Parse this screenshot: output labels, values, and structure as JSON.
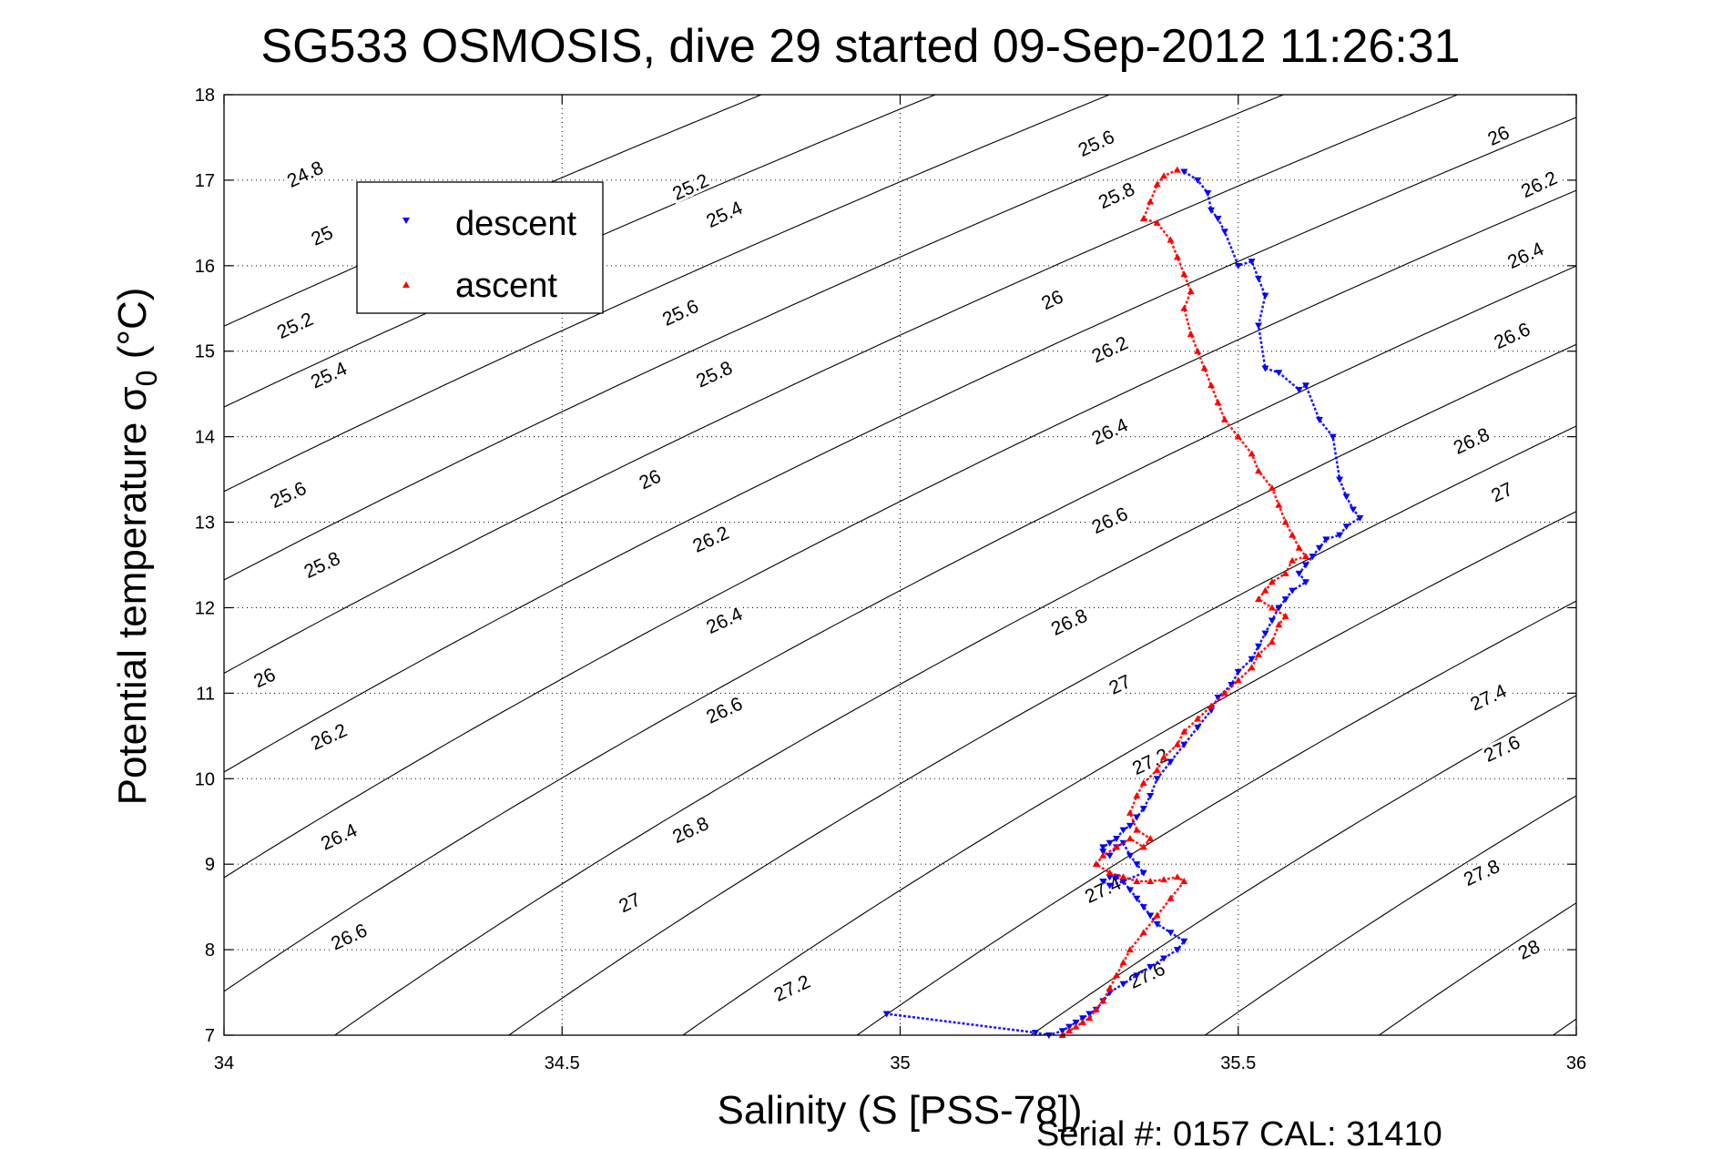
{
  "chart_data": {
    "type": "scatter",
    "title": "SG533 OSMOSIS, dive 29 started 09-Sep-2012 11:26:31",
    "xlabel": "Salinity (S [PSS-78])",
    "ylabel_main": "Potential temperature ",
    "ylabel_sigma": "σ",
    "ylabel_sub": "0",
    "ylabel_unit": " (°C)",
    "xlim": [
      34,
      36
    ],
    "ylim": [
      7,
      18
    ],
    "x_ticks": [
      "34",
      "34.5",
      "35",
      "35.5",
      "36"
    ],
    "y_ticks": [
      "7",
      "8",
      "9",
      "10",
      "11",
      "12",
      "13",
      "14",
      "15",
      "16",
      "17",
      "18"
    ],
    "grid": true,
    "legend_position": "top-left",
    "footer": "Serial #: 0157  CAL: 31410",
    "contour_levels": [
      24.8,
      25.0,
      25.2,
      25.4,
      25.6,
      25.8,
      26.0,
      26.2,
      26.4,
      26.6,
      26.8,
      27.0,
      27.2,
      27.4,
      27.6,
      27.8,
      28.0
    ],
    "contour_labels": [
      {
        "text": "24.8",
        "s": 34.12,
        "t": 17.07
      },
      {
        "text": "25",
        "s": 34.145,
        "t": 16.35
      },
      {
        "text": "25.2",
        "s": 34.105,
        "t": 15.3
      },
      {
        "text": "25.4",
        "s": 34.155,
        "t": 14.72
      },
      {
        "text": "25.6",
        "s": 34.095,
        "t": 13.32
      },
      {
        "text": "25.8",
        "s": 34.145,
        "t": 12.5
      },
      {
        "text": "26",
        "s": 34.06,
        "t": 11.18
      },
      {
        "text": "26.2",
        "s": 34.155,
        "t": 10.49
      },
      {
        "text": "26.4",
        "s": 34.17,
        "t": 9.32
      },
      {
        "text": "26.6",
        "s": 34.185,
        "t": 8.15
      },
      {
        "text": "25.2",
        "s": 34.69,
        "t": 16.92
      },
      {
        "text": "25.4",
        "s": 34.74,
        "t": 16.6
      },
      {
        "text": "25.6",
        "s": 34.675,
        "t": 15.45
      },
      {
        "text": "25.8",
        "s": 34.725,
        "t": 14.73
      },
      {
        "text": "26",
        "s": 34.63,
        "t": 13.5
      },
      {
        "text": "26.2",
        "s": 34.72,
        "t": 12.8
      },
      {
        "text": "26.4",
        "s": 34.74,
        "t": 11.85
      },
      {
        "text": "26.6",
        "s": 34.74,
        "t": 10.8
      },
      {
        "text": "26.8",
        "s": 34.69,
        "t": 9.4
      },
      {
        "text": "27",
        "s": 34.6,
        "t": 8.55
      },
      {
        "text": "27.2",
        "s": 34.84,
        "t": 7.55
      },
      {
        "text": "25.6",
        "s": 35.29,
        "t": 17.43
      },
      {
        "text": "25.8",
        "s": 35.32,
        "t": 16.82
      },
      {
        "text": "26",
        "s": 35.225,
        "t": 15.6
      },
      {
        "text": "26.2",
        "s": 35.31,
        "t": 15.02
      },
      {
        "text": "26.4",
        "s": 35.31,
        "t": 14.06
      },
      {
        "text": "26.6",
        "s": 35.31,
        "t": 13.02
      },
      {
        "text": "26.8",
        "s": 35.25,
        "t": 11.83
      },
      {
        "text": "27",
        "s": 35.325,
        "t": 11.1
      },
      {
        "text": "27.2",
        "s": 35.37,
        "t": 10.2
      },
      {
        "text": "27.4",
        "s": 35.3,
        "t": 8.7
      },
      {
        "text": "27.6",
        "s": 35.365,
        "t": 7.7
      },
      {
        "text": "26",
        "s": 35.885,
        "t": 17.52
      },
      {
        "text": "26.2",
        "s": 35.945,
        "t": 16.95
      },
      {
        "text": "26.4",
        "s": 35.925,
        "t": 16.12
      },
      {
        "text": "26.6",
        "s": 35.905,
        "t": 15.18
      },
      {
        "text": "26.8",
        "s": 35.845,
        "t": 13.95
      },
      {
        "text": "27",
        "s": 35.89,
        "t": 13.35
      },
      {
        "text": "27.4",
        "s": 35.87,
        "t": 10.95
      },
      {
        "text": "27.6",
        "s": 35.89,
        "t": 10.35
      },
      {
        "text": "27.8",
        "s": 35.86,
        "t": 8.9
      },
      {
        "text": "28",
        "s": 35.93,
        "t": 8.0
      }
    ],
    "series": [
      {
        "name": "descent",
        "color": "#0000ff",
        "marker": "triangle-down",
        "x": [
          35.42,
          35.44,
          35.455,
          35.46,
          35.47,
          35.48,
          35.5,
          35.52,
          35.53,
          35.54,
          35.53,
          35.54,
          35.56,
          35.59,
          35.6,
          35.62,
          35.64,
          35.65,
          35.66,
          35.67,
          35.68,
          35.66,
          35.65,
          35.63,
          35.62,
          35.61,
          35.6,
          35.59,
          35.6,
          35.58,
          35.57,
          35.56,
          35.55,
          35.54,
          35.53,
          35.52,
          35.5,
          35.49,
          35.47,
          35.46,
          35.44,
          35.42,
          35.4,
          35.38,
          35.37,
          35.36,
          35.35,
          35.34,
          35.33,
          35.32,
          35.31,
          35.3,
          35.3,
          35.31,
          35.32,
          35.33,
          35.34,
          35.35,
          35.36,
          35.33,
          35.31,
          35.3,
          35.31,
          35.32,
          35.33,
          35.34,
          35.35,
          35.36,
          35.37,
          35.38,
          35.4,
          35.42,
          35.41,
          35.39,
          35.37,
          35.35,
          35.33,
          35.31,
          35.3,
          35.29,
          35.28,
          35.27,
          35.26,
          35.25,
          35.24,
          35.22,
          35.2,
          34.98
        ],
        "y": [
          17.1,
          17.0,
          16.85,
          16.65,
          16.55,
          16.4,
          16.0,
          16.05,
          15.85,
          15.65,
          15.3,
          14.8,
          14.75,
          14.55,
          14.6,
          14.2,
          14.0,
          13.5,
          13.3,
          13.15,
          13.05,
          12.95,
          12.85,
          12.8,
          12.7,
          12.6,
          12.5,
          12.4,
          12.3,
          12.2,
          12.1,
          12.0,
          11.85,
          11.7,
          11.55,
          11.4,
          11.25,
          11.1,
          10.95,
          10.8,
          10.6,
          10.4,
          10.2,
          10.0,
          9.8,
          9.65,
          9.55,
          9.45,
          9.4,
          9.3,
          9.25,
          9.2,
          9.15,
          9.1,
          9.2,
          9.25,
          9.1,
          9.0,
          8.9,
          8.8,
          8.75,
          8.8,
          8.85,
          8.85,
          8.8,
          8.7,
          8.6,
          8.5,
          8.4,
          8.3,
          8.2,
          8.1,
          8.0,
          7.9,
          7.8,
          7.7,
          7.6,
          7.5,
          7.4,
          7.3,
          7.25,
          7.2,
          7.15,
          7.1,
          7.05,
          7.0,
          7.03,
          7.25
        ]
      },
      {
        "name": "ascent",
        "color": "#ff0000",
        "marker": "triangle-up",
        "x": [
          35.41,
          35.39,
          35.38,
          35.37,
          35.36,
          35.38,
          35.4,
          35.41,
          35.42,
          35.43,
          35.42,
          35.43,
          35.44,
          35.45,
          35.46,
          35.47,
          35.48,
          35.5,
          35.52,
          35.53,
          35.55,
          35.56,
          35.57,
          35.58,
          35.59,
          35.6,
          35.58,
          35.57,
          35.55,
          35.54,
          35.53,
          35.55,
          35.57,
          35.56,
          35.55,
          35.53,
          35.52,
          35.5,
          35.48,
          35.46,
          35.44,
          35.42,
          35.41,
          35.39,
          35.38,
          35.36,
          35.35,
          35.34,
          35.35,
          35.37,
          35.36,
          35.34,
          35.32,
          35.3,
          35.29,
          35.31,
          35.33,
          35.35,
          35.37,
          35.39,
          35.41,
          35.42,
          35.4,
          35.38,
          35.36,
          35.34,
          35.33,
          35.32,
          35.31,
          35.3,
          35.29,
          35.28,
          35.27,
          35.26,
          35.25,
          35.24
        ],
        "y": [
          17.12,
          17.05,
          16.95,
          16.75,
          16.55,
          16.5,
          16.3,
          16.1,
          15.9,
          15.7,
          15.5,
          15.2,
          15.0,
          14.8,
          14.6,
          14.4,
          14.2,
          14.0,
          13.8,
          13.6,
          13.4,
          13.2,
          13.0,
          12.85,
          12.7,
          12.6,
          12.55,
          12.4,
          12.3,
          12.2,
          12.1,
          12.0,
          11.9,
          11.8,
          11.6,
          11.45,
          11.3,
          11.15,
          11.0,
          10.85,
          10.7,
          10.55,
          10.4,
          10.25,
          10.1,
          9.95,
          9.8,
          9.6,
          9.4,
          9.3,
          9.2,
          9.3,
          9.2,
          9.1,
          9.0,
          8.9,
          8.85,
          8.8,
          8.8,
          8.82,
          8.85,
          8.8,
          8.6,
          8.4,
          8.2,
          8.0,
          7.85,
          7.7,
          7.55,
          7.4,
          7.3,
          7.2,
          7.15,
          7.1,
          7.05,
          7.0
        ]
      }
    ]
  }
}
